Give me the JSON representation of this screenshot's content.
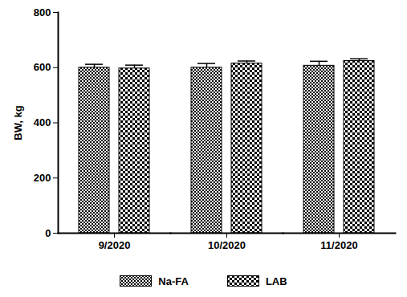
{
  "chart_data": {
    "type": "bar",
    "categories": [
      "9/2020",
      "10/2020",
      "11/2020"
    ],
    "series": [
      {
        "name": "Na-FA",
        "color": "#000000",
        "values": [
          600,
          600,
          607
        ],
        "errors": [
          12,
          15,
          16
        ]
      },
      {
        "name": "LAB",
        "color": "#000000",
        "values": [
          597,
          615,
          624
        ],
        "errors": [
          12,
          9,
          8
        ]
      }
    ],
    "y_label": "BW, kg",
    "ylim": [
      0,
      800
    ],
    "yticks": [
      0,
      200,
      400,
      600,
      800
    ],
    "grid": false,
    "legend": "bottom"
  }
}
